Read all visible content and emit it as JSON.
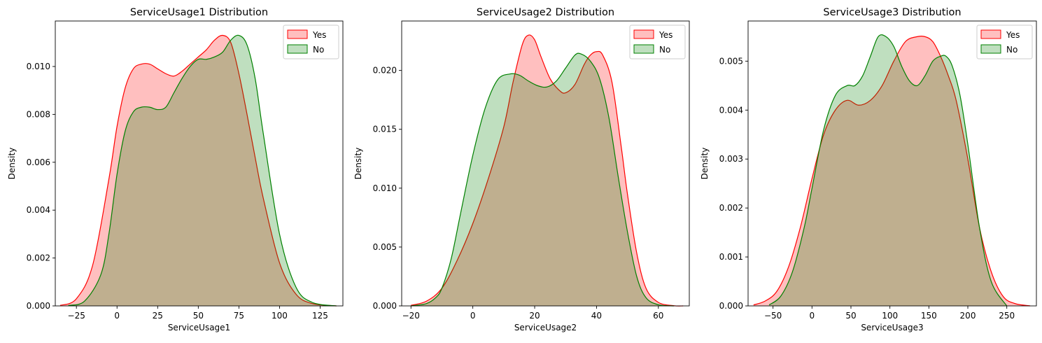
{
  "chart_data": [
    {
      "type": "area",
      "title": "ServiceUsage1 Distribution",
      "xlabel": "ServiceUsage1",
      "ylabel": "Density",
      "xlim": [
        -38,
        139
      ],
      "ylim": [
        0,
        0.0119
      ],
      "xticks": [
        -25,
        0,
        25,
        50,
        75,
        100,
        125
      ],
      "yticks": [
        0.0,
        0.002,
        0.004,
        0.006,
        0.008,
        0.01
      ],
      "ytick_labels": [
        "0.000",
        "0.002",
        "0.004",
        "0.006",
        "0.008",
        "0.010"
      ],
      "legend": "top-right",
      "grid": false,
      "series": [
        {
          "name": "Yes",
          "color": "#ff0000",
          "fill": "#ff0000",
          "x": [
            -35,
            -25,
            -15,
            -5,
            0,
            5,
            10,
            15,
            20,
            25,
            30,
            35,
            40,
            45,
            50,
            55,
            60,
            65,
            70,
            75,
            80,
            85,
            90,
            100,
            110,
            120,
            135
          ],
          "y": [
            2e-05,
            0.0003,
            0.0017,
            0.0053,
            0.0075,
            0.0091,
            0.0099,
            0.0101,
            0.0101,
            0.0099,
            0.0097,
            0.0096,
            0.0098,
            0.0101,
            0.0104,
            0.0107,
            0.0111,
            0.0113,
            0.011,
            0.0097,
            0.008,
            0.0062,
            0.0045,
            0.0018,
            0.0005,
            0.0001,
            0.0
          ]
        },
        {
          "name": "No",
          "color": "#008000",
          "fill": "#008000",
          "x": [
            -30,
            -20,
            -10,
            -5,
            0,
            5,
            10,
            15,
            20,
            25,
            30,
            35,
            40,
            45,
            50,
            55,
            60,
            65,
            70,
            75,
            80,
            85,
            90,
            100,
            110,
            120,
            135
          ],
          "y": [
            2e-05,
            0.0002,
            0.0013,
            0.003,
            0.0055,
            0.0073,
            0.0081,
            0.0083,
            0.0083,
            0.0082,
            0.0083,
            0.0089,
            0.0095,
            0.01,
            0.0103,
            0.0103,
            0.0104,
            0.0106,
            0.0111,
            0.0113,
            0.0109,
            0.0095,
            0.0072,
            0.003,
            0.0008,
            0.00015,
            0.0
          ]
        }
      ]
    },
    {
      "type": "area",
      "title": "ServiceUsage2 Distribution",
      "xlabel": "ServiceUsage2",
      "ylabel": "Density",
      "xlim": [
        -23,
        70
      ],
      "ylim": [
        0,
        0.0242
      ],
      "xticks": [
        -20,
        0,
        20,
        40,
        60
      ],
      "yticks": [
        0.0,
        0.005,
        0.01,
        0.015,
        0.02
      ],
      "ytick_labels": [
        "0.000",
        "0.005",
        "0.010",
        "0.015",
        "0.020"
      ],
      "legend": "top-right",
      "grid": false,
      "series": [
        {
          "name": "Yes",
          "color": "#ff0000",
          "fill": "#ff0000",
          "x": [
            -20,
            -15,
            -10,
            -5,
            0,
            5,
            10,
            13,
            16,
            18,
            20,
            22,
            25,
            28,
            30,
            33,
            36,
            38,
            40,
            42,
            45,
            48,
            50,
            53,
            56,
            60,
            65,
            68
          ],
          "y": [
            5e-05,
            0.0004,
            0.0015,
            0.0039,
            0.007,
            0.0108,
            0.0152,
            0.019,
            0.0222,
            0.023,
            0.0226,
            0.0212,
            0.0193,
            0.0183,
            0.0181,
            0.0188,
            0.0205,
            0.0213,
            0.0216,
            0.0213,
            0.019,
            0.0135,
            0.0095,
            0.0045,
            0.0015,
            0.0003,
            2e-05,
            0.0
          ]
        },
        {
          "name": "No",
          "color": "#008000",
          "fill": "#008000",
          "x": [
            -20,
            -15,
            -12,
            -10,
            -7,
            -4,
            0,
            4,
            8,
            12,
            15,
            18,
            21,
            24,
            27,
            30,
            33,
            35,
            38,
            41,
            44,
            47,
            50,
            53,
            56,
            60,
            65
          ],
          "y": [
            0.0,
            0.0002,
            0.0007,
            0.0015,
            0.004,
            0.0078,
            0.0128,
            0.0168,
            0.0192,
            0.0197,
            0.0196,
            0.0191,
            0.0187,
            0.0186,
            0.0191,
            0.0202,
            0.0213,
            0.0214,
            0.0208,
            0.0193,
            0.016,
            0.011,
            0.0063,
            0.0025,
            0.0007,
            0.0001,
            0.0
          ]
        }
      ]
    },
    {
      "type": "area",
      "title": "ServiceUsage3 Distribution",
      "xlabel": "ServiceUsage3",
      "ylabel": "Density",
      "xlim": [
        -82,
        288
      ],
      "ylim": [
        0,
        0.00582
      ],
      "xticks": [
        -50,
        0,
        50,
        100,
        150,
        200,
        250
      ],
      "yticks": [
        0.0,
        0.001,
        0.002,
        0.003,
        0.004,
        0.005
      ],
      "ytick_labels": [
        "0.000",
        "0.001",
        "0.002",
        "0.003",
        "0.004",
        "0.005"
      ],
      "legend": "top-right",
      "grid": false,
      "series": [
        {
          "name": "Yes",
          "color": "#ff0000",
          "fill": "#ff0000",
          "x": [
            -75,
            -60,
            -45,
            -30,
            -15,
            0,
            15,
            30,
            45,
            60,
            75,
            90,
            105,
            120,
            135,
            145,
            155,
            165,
            175,
            185,
            200,
            215,
            230,
            245,
            260,
            280
          ],
          "y": [
            2e-05,
            0.0001,
            0.0003,
            0.0008,
            0.0016,
            0.0026,
            0.0035,
            0.004,
            0.0042,
            0.0041,
            0.0042,
            0.0045,
            0.005,
            0.0054,
            0.0055,
            0.0055,
            0.0054,
            0.0051,
            0.0047,
            0.0042,
            0.003,
            0.0016,
            0.0007,
            0.0002,
            5e-05,
            0.0
          ]
        },
        {
          "name": "No",
          "color": "#008000",
          "fill": "#008000",
          "x": [
            -55,
            -40,
            -25,
            -10,
            0,
            15,
            30,
            45,
            55,
            65,
            75,
            85,
            95,
            105,
            115,
            125,
            135,
            145,
            155,
            165,
            172,
            180,
            190,
            200,
            215,
            230,
            250
          ],
          "y": [
            2e-05,
            0.0002,
            0.0007,
            0.0016,
            0.0024,
            0.0036,
            0.0043,
            0.0045,
            0.0045,
            0.0047,
            0.0051,
            0.0055,
            0.0055,
            0.0053,
            0.0049,
            0.0046,
            0.0045,
            0.0047,
            0.005,
            0.0051,
            0.0051,
            0.0049,
            0.0043,
            0.0033,
            0.0016,
            0.0005,
            0.0
          ]
        }
      ]
    }
  ]
}
